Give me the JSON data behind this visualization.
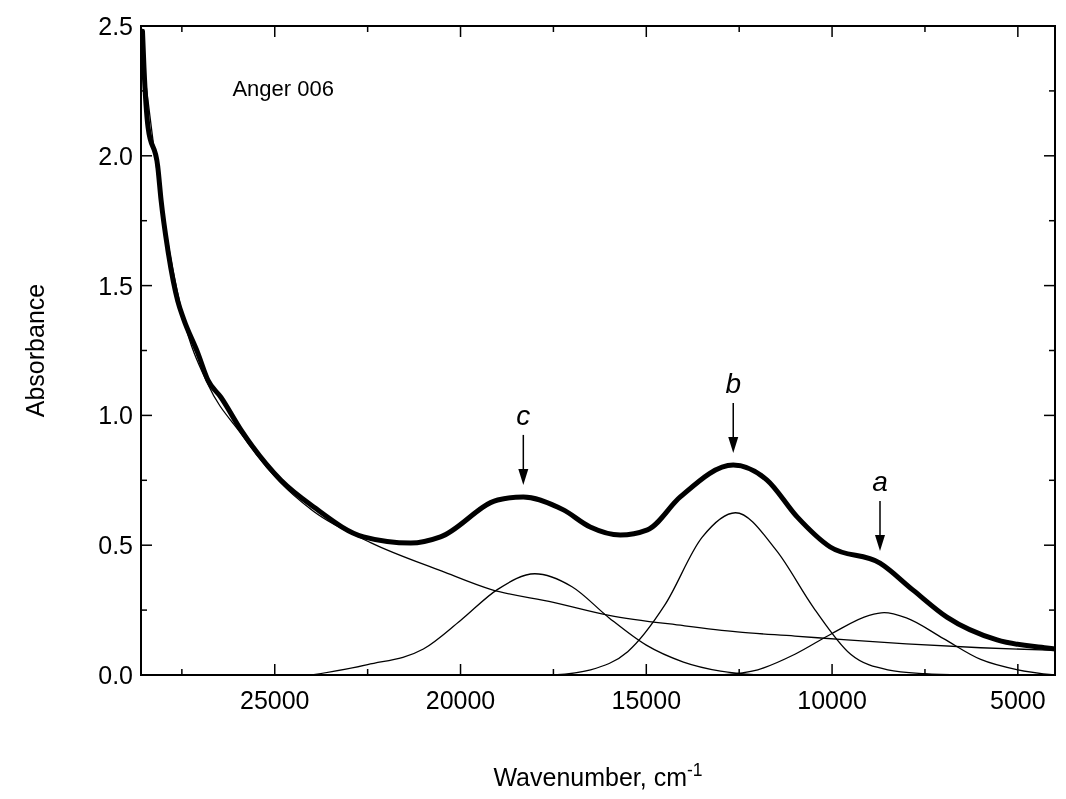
{
  "chart_data": {
    "type": "line",
    "xlabel": "Wavenumber, cm$^{-1}$",
    "ylabel": "Absorbance",
    "xlim": [
      28600,
      4000
    ],
    "ylim": [
      0,
      2.5
    ],
    "xticks": [
      {
        "value": 27500,
        "label": null
      },
      25000,
      {
        "value": 22500,
        "label": null
      },
      20000,
      {
        "value": 17500,
        "label": null
      },
      15000,
      {
        "value": 12500,
        "label": null
      },
      10000,
      {
        "value": 7500,
        "label": null
      },
      5000
    ],
    "yticks": [
      {
        "value": 0,
        "label": "0.0"
      },
      {
        "value": 0.25,
        "label": null
      },
      {
        "value": 0.5,
        "label": "0.5"
      },
      {
        "value": 0.75,
        "label": null
      },
      {
        "value": 1,
        "label": "1.0"
      },
      {
        "value": 1.25,
        "label": null
      },
      {
        "value": 1.5,
        "label": "1.5"
      },
      {
        "value": 1.75,
        "label": null
      },
      {
        "value": 2,
        "label": "2.0"
      },
      {
        "value": 2.25,
        "label": null
      },
      {
        "value": 2.5,
        "label": "2.5"
      }
    ],
    "grid": false,
    "line_style": "solid",
    "annotations": [
      "Anger 006",
      {
        "text": "c",
        "x": 18310,
        "y": 0.686
      },
      {
        "text": "b",
        "x": 12660,
        "y": 0.809
      },
      {
        "text": "a",
        "x": 8710,
        "y": 0.431
      }
    ],
    "series": [
      {
        "color": "#000000",
        "x": [
          28520,
          28060,
          27450,
          26800,
          25910,
          24840,
          23950,
          22420,
          20500,
          19190,
          17500,
          16000,
          14000,
          12550,
          11000,
          9600,
          8000,
          6000,
          4000
        ],
        "values": [
          2.34,
          1.83,
          1.37,
          1.12,
          0.93,
          0.74,
          0.63,
          0.51,
          0.4,
          0.33,
          0.28,
          0.23,
          0.19,
          0.166,
          0.15,
          0.135,
          0.12,
          0.105,
          0.095
        ]
      },
      {
        "color": "#000000",
        "x": [
          24000,
          22500,
          21000,
          20000,
          19000,
          18000,
          17000,
          16000,
          15000,
          14000,
          13000,
          12000
        ],
        "values": [
          0,
          0.04,
          0.1,
          0.21,
          0.33,
          0.39,
          0.34,
          0.22,
          0.115,
          0.05,
          0.015,
          0
        ]
      },
      {
        "color": "#000000",
        "x": [
          17500,
          16500,
          15500,
          14500,
          13500,
          12600,
          11500,
          10500,
          9500,
          8500,
          7500,
          6500
        ],
        "values": [
          0,
          0.02,
          0.09,
          0.27,
          0.53,
          0.625,
          0.48,
          0.26,
          0.08,
          0.02,
          0.005,
          0
        ]
      },
      {
        "color": "#000000",
        "x": [
          13000,
          12000,
          11000,
          10000,
          9000,
          8600,
          8000,
          7000,
          6000,
          5000,
          4000
        ],
        "values": [
          0,
          0.02,
          0.08,
          0.16,
          0.23,
          0.24,
          0.22,
          0.14,
          0.06,
          0.02,
          0
        ]
      },
      {
        "color": "#000000",
        "x": [
          28560,
          28520,
          28410,
          28150,
          28060,
          27880,
          27610,
          27450,
          27070,
          26800,
          26450,
          25910,
          24840,
          23950,
          22610,
          21340,
          20540,
          19000,
          18310,
          17230,
          16510,
          15700,
          14970,
          14086,
          12660,
          11750,
          10940,
          10050,
          8710,
          7820,
          6910,
          5560,
          4220,
          4000
        ],
        "values": [
          2.48,
          2.34,
          2.11,
          1.96,
          1.83,
          1.64,
          1.44,
          1.37,
          1.24,
          1.136,
          1.07,
          0.944,
          0.751,
          0.647,
          0.532,
          0.508,
          0.532,
          0.674,
          0.686,
          0.636,
          0.57,
          0.539,
          0.559,
          0.686,
          0.809,
          0.751,
          0.609,
          0.493,
          0.431,
          0.327,
          0.223,
          0.135,
          0.104,
          0.1
        ]
      }
    ]
  }
}
